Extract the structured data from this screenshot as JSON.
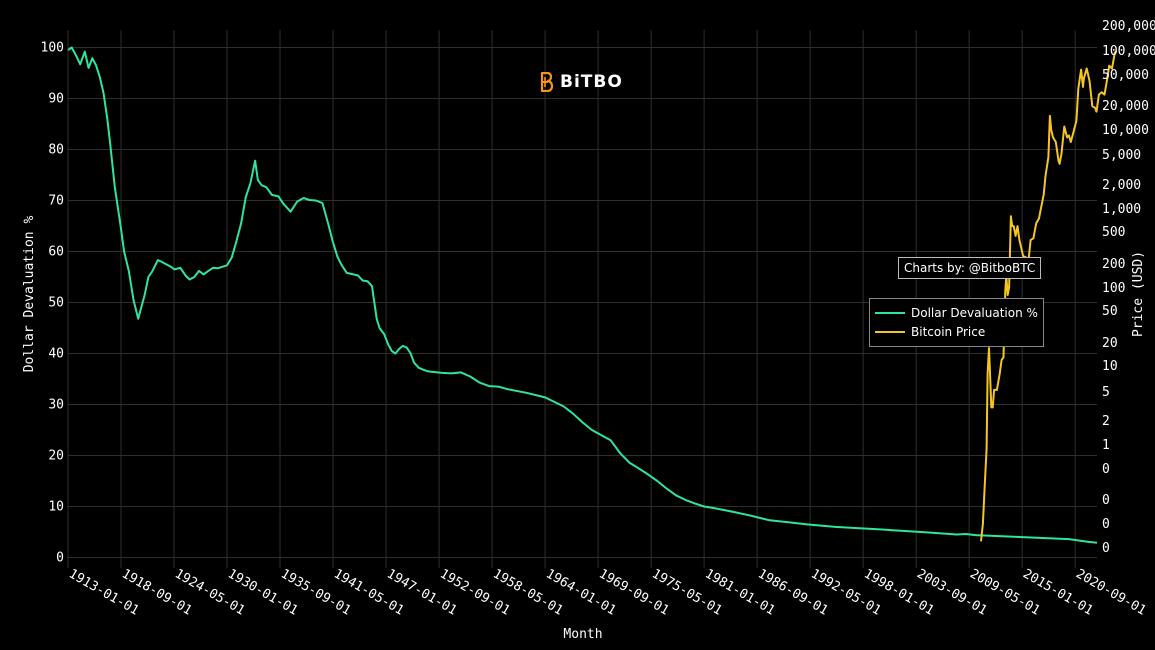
{
  "brand": {
    "name": "BiTBO",
    "icon": "bitbo-logo-icon",
    "color": "#f7931a"
  },
  "credit": "Charts by: @BitboBTC",
  "legend": [
    {
      "label": "Dollar Devaluation %",
      "color": "#2ee59d"
    },
    {
      "label": "Bitcoin Price",
      "color": "#f5c623"
    }
  ],
  "chart_data": {
    "type": "line",
    "xlabel": "Month",
    "ylabel": "Dollar Devaluation %",
    "y2label": "Price (USD)",
    "grid": true,
    "legend_position": "right",
    "x_tick_labels": [
      "1913-01-01",
      "1918-09-01",
      "1924-05-01",
      "1930-01-01",
      "1935-09-01",
      "1941-05-01",
      "1947-01-01",
      "1952-09-01",
      "1958-05-01",
      "1964-01-01",
      "1969-09-01",
      "1975-05-01",
      "1981-01-01",
      "1986-09-01",
      "1992-05-01",
      "1998-01-01",
      "2003-09-01",
      "2009-05-01",
      "2015-01-01",
      "2020-09-01"
    ],
    "y_tick_labels": [
      "0",
      "10",
      "20",
      "30",
      "40",
      "50",
      "60",
      "70",
      "80",
      "90",
      "100"
    ],
    "ylim": [
      0,
      100
    ],
    "y2_tick_labels": [
      "0",
      "0",
      "0",
      "0",
      "1",
      "2",
      "5",
      "10",
      "20",
      "50",
      "100",
      "200",
      "500",
      "1,000",
      "2,000",
      "5,000",
      "10,000",
      "20,000",
      "50,000",
      "100,000",
      "200,000"
    ],
    "y2_scale": "log",
    "x_range": [
      1913.0,
      2023.0
    ],
    "series": [
      {
        "name": "Dollar Devaluation %",
        "color": "#2ee59d",
        "axis": "left",
        "x": [
          1913.0,
          1913.4,
          1913.9,
          1914.3,
          1914.8,
          1915.2,
          1915.6,
          1916.0,
          1916.4,
          1916.8,
          1917.2,
          1917.5,
          1918.0,
          1918.6,
          1919.0,
          1919.5,
          1920.0,
          1920.5,
          1921.2,
          1921.6,
          1922.0,
          1922.6,
          1923.0,
          1923.5,
          1924.0,
          1924.4,
          1925.0,
          1925.6,
          1926.0,
          1926.5,
          1927.0,
          1927.5,
          1928.0,
          1928.5,
          1929.0,
          1929.5,
          1930.0,
          1930.5,
          1931.0,
          1931.5,
          1932.0,
          1932.5,
          1933.0,
          1933.3,
          1933.7,
          1934.2,
          1934.8,
          1935.5,
          1936.0,
          1936.8,
          1937.5,
          1938.2,
          1938.8,
          1939.5,
          1940.2,
          1940.8,
          1941.3,
          1941.8,
          1942.2,
          1942.8,
          1943.5,
          1944.0,
          1944.5,
          1945.0,
          1945.5,
          1946.0,
          1946.3,
          1946.8,
          1947.2,
          1947.6,
          1948.0,
          1948.4,
          1948.8,
          1949.2,
          1949.6,
          1950.0,
          1950.5,
          1951.0,
          1951.5,
          1952.0,
          1953.0,
          1954.0,
          1955.0,
          1956.0,
          1957.0,
          1958.0,
          1959.0,
          1960.0,
          1962.0,
          1964.0,
          1966.0,
          1967.0,
          1968.0,
          1969.0,
          1970.0,
          1971.0,
          1972.0,
          1973.0,
          1974.0,
          1975.0,
          1976.0,
          1977.0,
          1978.0,
          1979.0,
          1980.0,
          1981.0,
          1982.0,
          1984.0,
          1986.0,
          1988.0,
          1990.0,
          1992.0,
          1995.0,
          2000.0,
          2005.0,
          2008.0,
          2009.0,
          2010.0,
          2015.0,
          2020.0,
          2022.0,
          2023.0
        ],
        "y": [
          99.5,
          100,
          98.3,
          96.7,
          99.2,
          96.0,
          97.9,
          96.5,
          94.2,
          91.1,
          86.0,
          81.3,
          72.6,
          65.3,
          60.0,
          56.2,
          50.5,
          46.8,
          51.5,
          55.0,
          56.1,
          58.3,
          58.0,
          57.5,
          57.0,
          56.5,
          56.8,
          55.2,
          54.5,
          55.0,
          56.2,
          55.5,
          56.2,
          56.8,
          56.7,
          57.0,
          57.3,
          58.8,
          62.0,
          65.5,
          70.6,
          73.4,
          77.8,
          74.0,
          73.0,
          72.6,
          71.1,
          70.8,
          69.4,
          67.8,
          69.8,
          70.5,
          70.1,
          70.0,
          69.5,
          65.5,
          62.0,
          59.0,
          57.5,
          55.8,
          55.5,
          55.3,
          54.3,
          54.2,
          53.2,
          46.8,
          45.0,
          43.8,
          41.9,
          40.5,
          40.0,
          40.9,
          41.5,
          41.2,
          40.1,
          38.2,
          37.2,
          36.8,
          36.5,
          36.4,
          36.2,
          36.1,
          36.3,
          35.5,
          34.3,
          33.6,
          33.5,
          33.0,
          32.3,
          31.4,
          29.6,
          28.2,
          26.5,
          25.0,
          24.0,
          23.0,
          20.5,
          18.6,
          17.5,
          16.3,
          15.0,
          13.5,
          12.2,
          11.3,
          10.6,
          10.0,
          9.7,
          9.0,
          8.2,
          7.3,
          6.9,
          6.5,
          6.0,
          5.5,
          4.9,
          4.5,
          4.6,
          4.4,
          4.0,
          3.6,
          3.1,
          2.9
        ]
      },
      {
        "name": "Bitcoin Price",
        "color": "#f5c623",
        "axis": "right",
        "x": [
          2010.6,
          2010.8,
          2011.0,
          2011.2,
          2011.3,
          2011.45,
          2011.55,
          2011.7,
          2011.85,
          2012.0,
          2012.3,
          2012.6,
          2012.8,
          2013.0,
          2013.2,
          2013.3,
          2013.45,
          2013.6,
          2013.8,
          2013.85,
          2013.95,
          2014.1,
          2014.3,
          2014.5,
          2014.7,
          2014.9,
          2015.1,
          2015.4,
          2015.7,
          2015.9,
          2016.2,
          2016.5,
          2016.8,
          2017.0,
          2017.3,
          2017.5,
          2017.8,
          2017.96,
          2018.1,
          2018.3,
          2018.6,
          2018.9,
          2019.0,
          2019.2,
          2019.5,
          2019.8,
          2020.0,
          2020.2,
          2020.5,
          2020.8,
          2021.0,
          2021.3,
          2021.5,
          2021.6,
          2021.9,
          2022.2,
          2022.5,
          2022.8,
          2022.95,
          2023.2,
          2023.5,
          2023.8,
          2024.1,
          2024.3,
          2024.6,
          2024.9,
          2025.1
        ],
        "y": [
          0.06,
          0.1,
          0.3,
          0.9,
          8,
          17,
          9,
          3,
          3,
          5,
          5,
          8,
          12,
          13,
          90,
          140,
          80,
          100,
          800,
          700,
          600,
          600,
          450,
          600,
          400,
          320,
          250,
          240,
          230,
          400,
          420,
          650,
          750,
          1000,
          1500,
          2600,
          4500,
          15000,
          10000,
          8000,
          7000,
          4000,
          3700,
          5000,
          11000,
          8000,
          8500,
          7000,
          9500,
          13000,
          33000,
          58000,
          35000,
          45000,
          60000,
          42000,
          20000,
          19000,
          17000,
          28000,
          30000,
          28000,
          45000,
          65000,
          60000,
          95000,
          100000
        ]
      }
    ]
  }
}
